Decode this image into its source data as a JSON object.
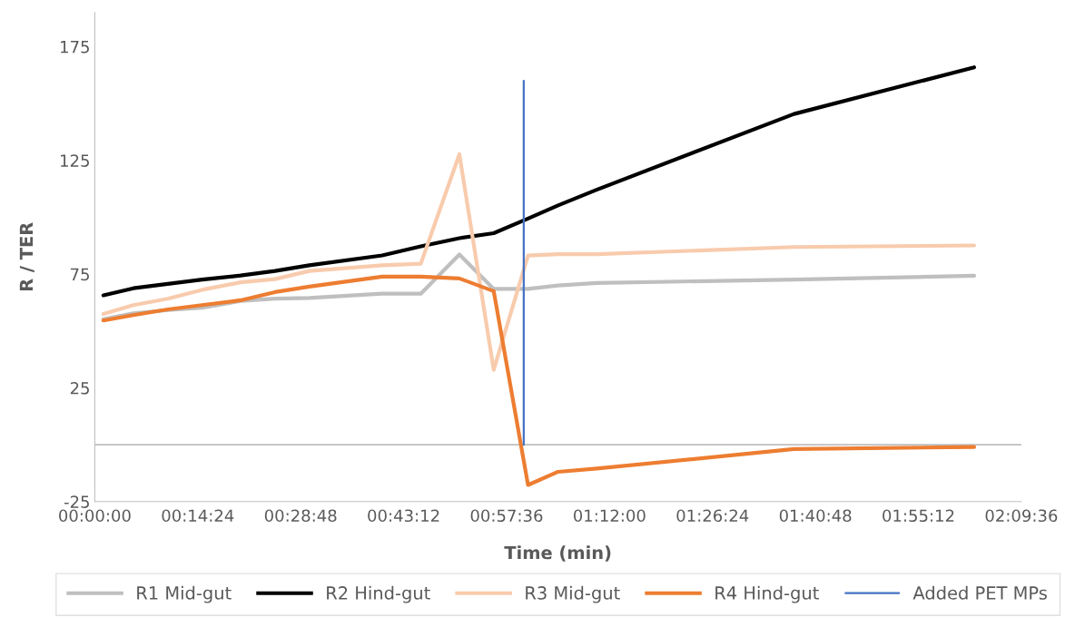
{
  "chart_data": {
    "type": "line",
    "xlabel": "Time (min)",
    "ylabel": "R / TER",
    "x": [
      0.02,
      0.09,
      0.17,
      0.25,
      0.34,
      0.42,
      0.5,
      0.67,
      0.76,
      0.85,
      0.93,
      1.01,
      1.08,
      1.17,
      1.63,
      2.05
    ],
    "series": [
      {
        "name": "R1 Mid-gut",
        "color": "#bfbfbf",
        "values": [
          55.2,
          57.8,
          59.2,
          60.2,
          63.2,
          64.2,
          64.5,
          66.4,
          66.4,
          83.6,
          68.5,
          68.5,
          70.0,
          71.1,
          72.6,
          74.3
        ]
      },
      {
        "name": "R2 Hind-gut",
        "color": "#000000",
        "values": [
          65.7,
          68.8,
          70.7,
          72.6,
          74.4,
          76.4,
          78.9,
          83.2,
          87.2,
          90.8,
          93.0,
          99.4,
          105.2,
          112.1,
          145.4,
          165.9
        ]
      },
      {
        "name": "R3 Mid-gut",
        "color": "#f8cbad",
        "values": [
          57.5,
          61.4,
          64.2,
          68.1,
          71.4,
          72.8,
          76.4,
          78.9,
          79.6,
          127.7,
          32.9,
          83.2,
          83.8,
          83.8,
          86.9,
          87.6
        ]
      },
      {
        "name": "R4 Hind-gut",
        "color": "#ed7d31",
        "values": [
          54.6,
          57.0,
          59.5,
          61.4,
          63.5,
          67.1,
          69.5,
          73.9,
          73.9,
          73.1,
          67.5,
          -17.7,
          -11.9,
          -10.5,
          -1.9,
          -1.0
        ]
      },
      {
        "name": "Added PET MPs",
        "color": "#4472c4",
        "x": [
          1.0,
          1.0
        ],
        "values": [
          0,
          160
        ]
      }
    ],
    "xlim": [
      0,
      2.16
    ],
    "xticks": [
      {
        "value": 0,
        "label": "00:00:00"
      },
      {
        "value": 0.24,
        "label": "00:14:24"
      },
      {
        "value": 0.48,
        "label": "00:28:48"
      },
      {
        "value": 0.72,
        "label": "00:43:12"
      },
      {
        "value": 0.96,
        "label": "00:57:36"
      },
      {
        "value": 1.2,
        "label": "01:12:00"
      },
      {
        "value": 1.44,
        "label": "01:26:24"
      },
      {
        "value": 1.68,
        "label": "01:40:48"
      },
      {
        "value": 1.92,
        "label": "01:55:12"
      },
      {
        "value": 2.16,
        "label": "02:09:36"
      }
    ],
    "ylim": [
      -25,
      190
    ],
    "yticks": [
      -25,
      25,
      75,
      125,
      175
    ],
    "grid": false,
    "legend": "bottom",
    "marker": "none",
    "line_style": "solid"
  }
}
